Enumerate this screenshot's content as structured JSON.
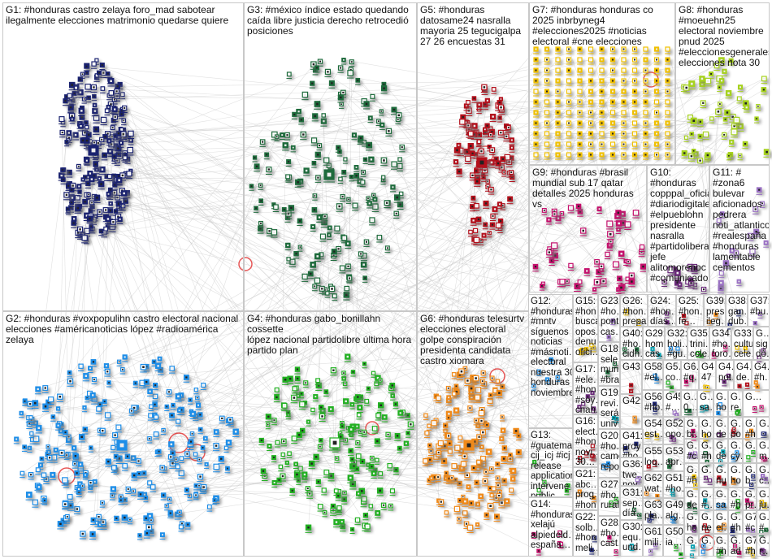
{
  "groups": [
    {
      "id": "G1",
      "label": "G1: #honduras castro zelaya foro_mad sabotear ilegalmente elecciones matrimonio quedarse quiere",
      "color": "#1b2370"
    },
    {
      "id": "G3",
      "label": "G3: #méxico índice estado quedando caída libre justicia derecho retrocedió posiciones",
      "color": "#1e6b3c"
    },
    {
      "id": "G5",
      "label": "G5: #honduras datosame24 nasralla mayoria 25 tegucigalpa 27 26 encuestas 31",
      "color": "#b3101c"
    },
    {
      "id": "G7",
      "label": "G7: #honduras honduras co 2025 inbrbyneg4 #elecciones2025 #noticias electoral #cne elecciones",
      "color": "#f0c000"
    },
    {
      "id": "G8",
      "label": "G8: #honduras\n#moeuehn25 electoral noviembre pnud 2025 #eleccionesgenerales…\nelecciones nota 30",
      "color": "#a6d21e"
    },
    {
      "id": "G9",
      "label": "G9: #honduras #brasil mundial sub 17 qatar detalles 2025 honduras vs",
      "color": "#c4106c"
    },
    {
      "id": "G10",
      "label": "G10: #honduras\ncopppal_oficial\n#diariodigitalel…\n#elpueblohn\npresidente\nnasralla\n#partidoliberal\njefe\nalitomorenoc\n#comunicado",
      "color": "#6a2a7a"
    },
    {
      "id": "G11",
      "label": "G11: # #zona6\nbulevar\naficionados\npedrera\nnoti_atlantico\n#realespaña\n#honduras\nlamentable\ncementos",
      "color": "#9b72c4"
    },
    {
      "id": "G2",
      "label": "G2: #honduras #voxpopulihn castro electoral nacional elecciones #américanoticias lópez #radioamérica zelaya",
      "color": "#1e8ee8"
    },
    {
      "id": "G4",
      "label": "G4: #honduras gabo_bonillahn cossette\nlópez nacional partidolibre última hora\npartido plan",
      "color": "#22b022"
    },
    {
      "id": "G6",
      "label": "G6: #honduras telesurtv elecciones electoral golpe conspiración presidenta candidata castro xiomara",
      "color": "#f08a1a"
    }
  ],
  "small_groups": [
    {
      "label": "G12:\n#honduras\n#mntv\nsíguenos\nnoticias\n#másnoti…\nelectoral\nnuestra 30\nhonduras\nnoviembre"
    },
    {
      "label": "G13:\n#guatema…\ncij_icj #icj\nrelease\napplication\nintervene\npublic…"
    },
    {
      "label": "G14:\n#honduras\nxelajú\nalpiedeld…\nespaña…"
    },
    {
      "label": "G15:\n#hon…\nbusca\nopos…\ndenu…\nofici…"
    },
    {
      "label": "G17:\n#ele…\n#hon…\n#soy…\ncnah…"
    },
    {
      "label": "G16:\nelect…\n#hon…\nnovi…\n30…"
    },
    {
      "label": "G21:\nabc…\nprog…\n#hon…"
    },
    {
      "label": "G22:\nsolb…\n#hon…\nmeli…"
    },
    {
      "label": "G23:\n#ho…\npont…\ncas…"
    },
    {
      "label": "G18:\nsele…\nmuri…\n#bra…"
    },
    {
      "label": "G19:\nrevi…\nserá\nuniv…"
    },
    {
      "label": "G20:\n#ho…\ncame…\nrepo…"
    },
    {
      "label": "G27:\n#ho…\nrural…"
    },
    {
      "label": "G28:\n#ho…\ncast…"
    },
    {
      "label": "G26:\n#hon…\nprepa…"
    },
    {
      "label": "G24:\n#hon…\ndías…"
    },
    {
      "label": "G25:\n#hon…\nfe…"
    },
    {
      "label": "G39:\npres…\nileg…"
    },
    {
      "label": "G38:\ngan…\ndub…"
    },
    {
      "label": "G37:\n#bu…"
    },
    {
      "label": "G40:\n#ho…\ncidh…"
    },
    {
      "label": "G29:\nhom…\ncas…"
    },
    {
      "label": "G32:\nholi…\n#gu…"
    },
    {
      "label": "G35:\ntrini…\ncole…"
    },
    {
      "label": "G34:\n#ho…\nforo…"
    },
    {
      "label": "G33:\ncultu…\ncele…"
    },
    {
      "label": "G…\nsig…\ndo…"
    },
    {
      "label": "G43:"
    },
    {
      "label": "G42:"
    },
    {
      "label": "G41:\nproy…\n#ho…"
    },
    {
      "label": "G36:\ntwe…\nnov…"
    },
    {
      "label": "G31:\nsep…\ndía…"
    },
    {
      "label": "G30:\nequ…\nund…"
    },
    {
      "label": "G58:\n#el…"
    },
    {
      "label": "G5…\nco…"
    },
    {
      "label": "G6…\n#q…"
    },
    {
      "label": "G4…\n47"
    },
    {
      "label": "G4…\npot…"
    },
    {
      "label": "G4…\nde…"
    },
    {
      "label": "G4…\n#h…"
    },
    {
      "label": "G56:\n#ho…"
    },
    {
      "label": "G45:\n#…"
    },
    {
      "label": "G…\n0…"
    },
    {
      "label": "G…\nsa…"
    },
    {
      "label": "G…\nho…"
    },
    {
      "label": "G…\nre…"
    },
    {
      "label": "G…"
    },
    {
      "label": "G54:\nest…"
    },
    {
      "label": "G52:\nopo…"
    },
    {
      "label": "G55:\nloq…"
    },
    {
      "label": "G62:\nwat…"
    },
    {
      "label": "G63:\npla…"
    },
    {
      "label": "G61:\nmili…"
    },
    {
      "label": "G53:\napr…"
    },
    {
      "label": "G51:\n#ho…"
    },
    {
      "label": "G49:\nalg…"
    },
    {
      "label": "G50:\nia…"
    },
    {
      "label": "G…\nbr…"
    },
    {
      "label": "G…\nho…"
    },
    {
      "label": "G…\nde…"
    },
    {
      "label": "G…\npo…"
    },
    {
      "label": "G…\n#h…"
    },
    {
      "label": "G…"
    },
    {
      "label": "G…\n#c…"
    },
    {
      "label": "G…\n#h…"
    },
    {
      "label": "G…\nde…"
    },
    {
      "label": "G…\ncy…"
    },
    {
      "label": "G…"
    },
    {
      "label": "G…\nm…"
    },
    {
      "label": "G…\n#h…"
    },
    {
      "label": "G…"
    },
    {
      "label": "G…\nnu…"
    },
    {
      "label": "G…\nho…"
    },
    {
      "label": "G…\nb…"
    },
    {
      "label": "G…\nc…"
    },
    {
      "label": "G…\nde…"
    },
    {
      "label": "G…\n#…"
    },
    {
      "label": "G…\nsa…"
    },
    {
      "label": "G…\n#h…"
    },
    {
      "label": "G…\npr…"
    },
    {
      "label": "G…\nju…"
    },
    {
      "label": "G…\nho…"
    },
    {
      "label": "G…\nne…"
    },
    {
      "label": "G…\nel…"
    },
    {
      "label": "G…\n#h…"
    },
    {
      "label": "G7…\n#c…"
    },
    {
      "label": "G…\n#…"
    },
    {
      "label": "G…"
    },
    {
      "label": "G…"
    },
    {
      "label": "G…\n#h…"
    },
    {
      "label": "G…\nad…"
    },
    {
      "label": "G7…\n#h…"
    },
    {
      "label": "G…\nr…"
    }
  ],
  "edge_color": "#bdbdbd"
}
